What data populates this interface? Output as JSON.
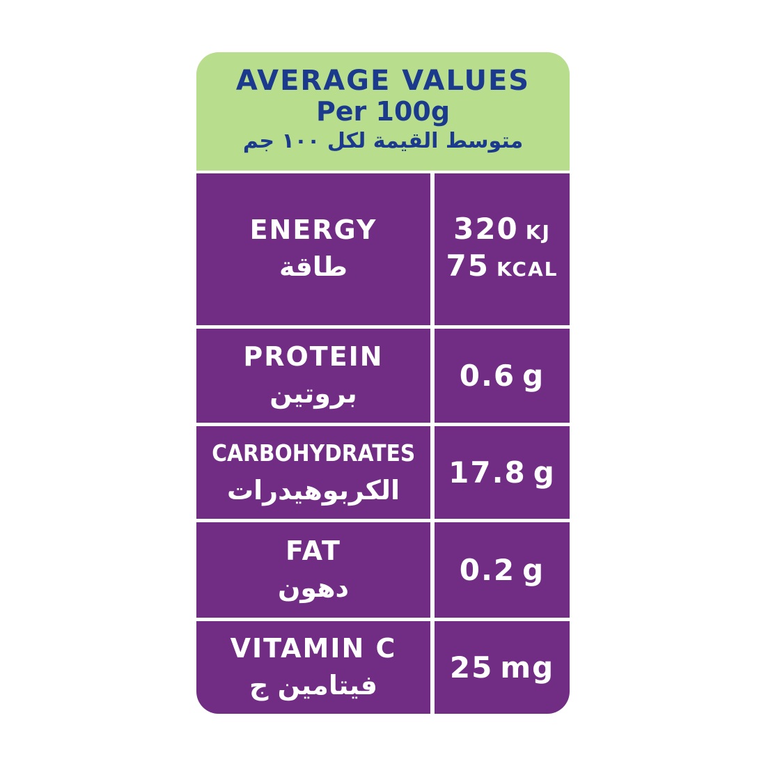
{
  "header": {
    "title": "AVERAGE VALUES",
    "subtitle": "Per 100g",
    "arabic": "متوسط القيمة لكل ١٠٠ جم"
  },
  "rows": [
    {
      "name": "ENERGY",
      "name_ar": "طاقة",
      "values": [
        {
          "amount": "320",
          "unit": "KJ"
        },
        {
          "amount": "75",
          "unit": "KCAL"
        }
      ]
    },
    {
      "name": "PROTEIN",
      "name_ar": "بروتين",
      "values": [
        {
          "amount": "0.6",
          "unit": "g"
        }
      ]
    },
    {
      "name": "CARBOHYDRATES",
      "name_ar": "الكربوهيدرات",
      "values": [
        {
          "amount": "17.8",
          "unit": "g"
        }
      ]
    },
    {
      "name": "FAT",
      "name_ar": "دهون",
      "values": [
        {
          "amount": "0.2",
          "unit": "g"
        }
      ]
    },
    {
      "name": "VITAMIN C",
      "name_ar": "فيتامين ج",
      "values": [
        {
          "amount": "25",
          "unit": "mg"
        }
      ]
    }
  ]
}
